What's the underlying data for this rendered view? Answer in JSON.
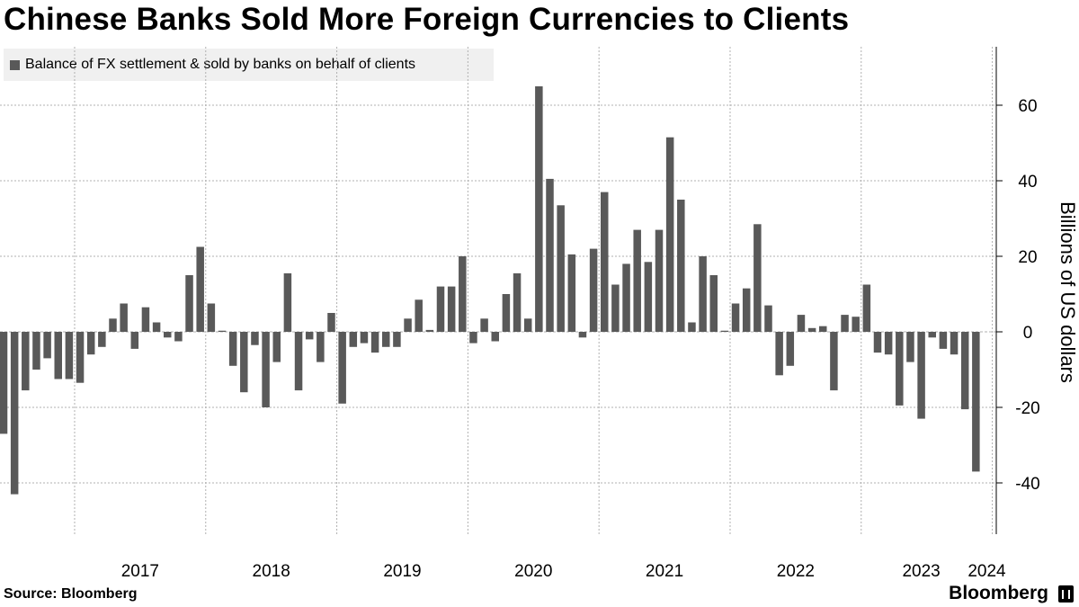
{
  "title": "Chinese Banks Sold More Foreign Currencies to Clients",
  "source": "Source: Bloomberg",
  "brand": "Bloomberg",
  "chart_data": {
    "type": "bar",
    "title": "Chinese Banks Sold More Foreign Currencies to Clients",
    "legend": [
      "Balance of FX settlement & sold by banks on behalf of clients"
    ],
    "ylabel": "Billions of US dollars",
    "xlabel": "",
    "ylim": [
      -53,
      75
    ],
    "yticks": [
      60,
      40,
      20,
      0,
      -20,
      -40
    ],
    "ytick_labels": [
      "60",
      "40",
      "20",
      "0",
      "-20",
      "-40"
    ],
    "x_start": "2016-06",
    "year_labels": [
      "2017",
      "2018",
      "2019",
      "2020",
      "2021",
      "2022",
      "2023",
      "2024"
    ],
    "color": "#595959",
    "series": [
      {
        "name": "Balance of FX settlement & sold by banks on behalf of clients",
        "values": [
          -27,
          -43,
          -15.5,
          -10,
          -7,
          -12.5,
          -12.5,
          -13.5,
          -6,
          -4,
          3.5,
          7.5,
          -4.5,
          6.5,
          2.5,
          -1.5,
          -2.5,
          15,
          22.5,
          7.5,
          0.3,
          -9,
          -16,
          -3.5,
          -20,
          -8,
          15.5,
          -15.5,
          -2,
          -8,
          5,
          -19,
          -4,
          -3,
          -5.5,
          -4,
          -4,
          3.5,
          8.5,
          0.5,
          12,
          12,
          20,
          -3,
          3.5,
          -2.5,
          10,
          15.5,
          3.5,
          65,
          40.5,
          33.5,
          20.5,
          -1.5,
          22,
          37,
          12.5,
          18,
          27,
          18.5,
          27,
          51.5,
          35,
          2.5,
          20,
          15,
          0.3,
          7.5,
          11.5,
          28.5,
          7,
          -11.5,
          -9,
          4.5,
          1,
          1.5,
          -15.5,
          4.5,
          4,
          12.5,
          -5.5,
          -6,
          -19.5,
          -8,
          -23,
          -1.5,
          -4.5,
          -6,
          -20.5,
          -37
        ]
      }
    ]
  }
}
